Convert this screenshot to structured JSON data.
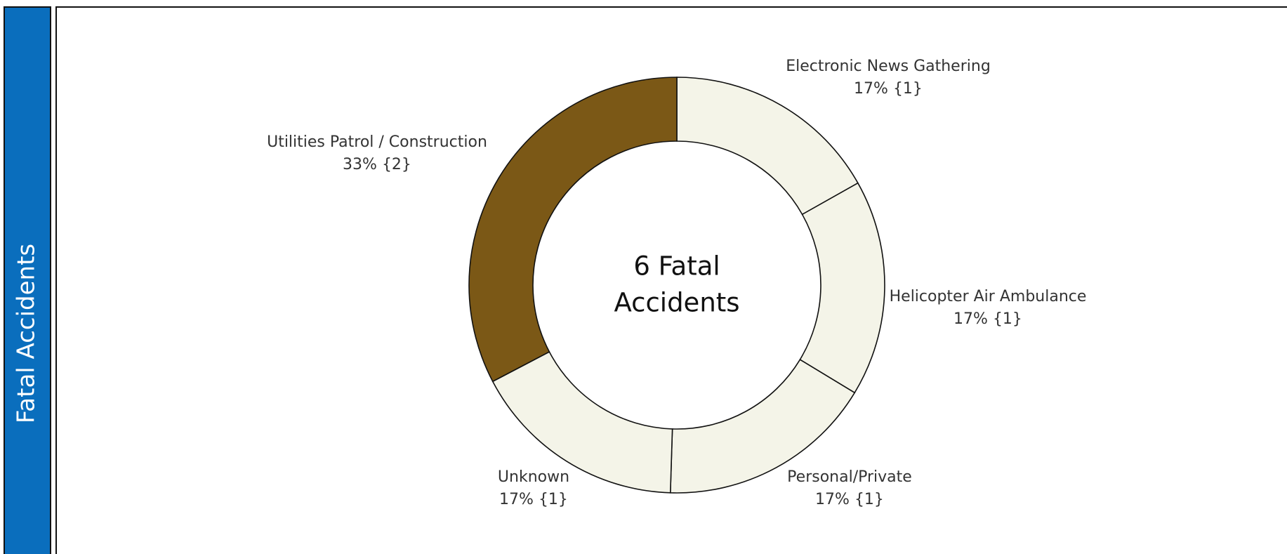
{
  "chart_data": {
    "type": "donut",
    "panel_label": "Fatal Accidents",
    "center_text": [
      "6 Fatal",
      "Accidents"
    ],
    "categories": [
      "Electronic News Gathering",
      "Helicopter Air Ambulance",
      "Personal/Private",
      "Unknown",
      "Utilities Patrol / Construction"
    ],
    "values": [
      17,
      17,
      17,
      17,
      33
    ],
    "value_labels": [
      "17% {1}",
      "17% {1}",
      "17% {1}",
      "17% {1}",
      "33% {2}"
    ],
    "colors": [
      "#f4f4e8",
      "#f4f4e8",
      "#f4f4e8",
      "#f4f4e8",
      "#7b5816"
    ]
  }
}
